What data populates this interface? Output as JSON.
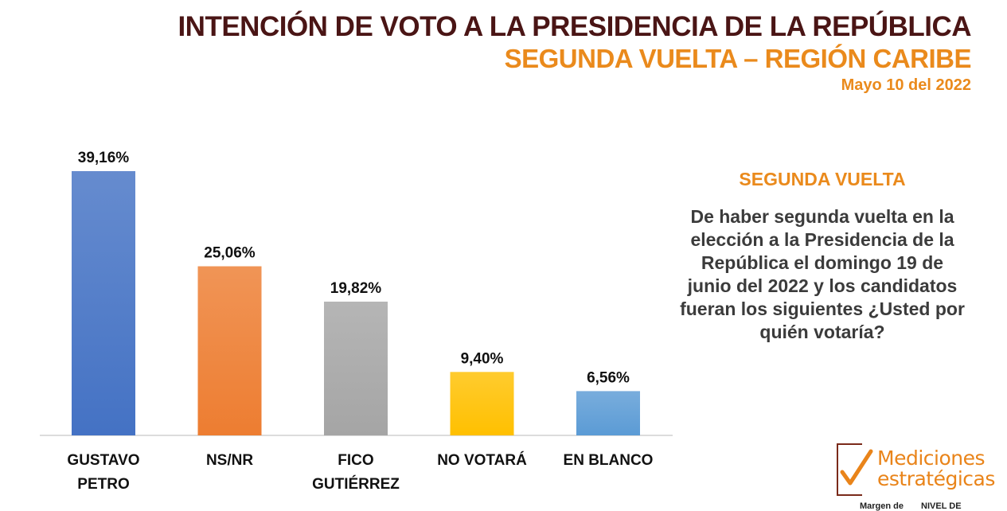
{
  "header": {
    "title": "INTENCIÓN DE VOTO A LA PRESIDENCIA DE LA REPÚBLICA",
    "subtitle": "SEGUNDA VUELTA – REGIÓN CARIBE",
    "date": "Mayo 10 del 2022"
  },
  "chart_data": {
    "type": "bar",
    "title": "INTENCIÓN DE VOTO A LA PRESIDENCIA DE LA REPÚBLICA",
    "subtitle": "SEGUNDA VUELTA – REGIÓN CARIBE",
    "categories": [
      [
        "GUSTAVO",
        "PETRO"
      ],
      [
        "NS/NR"
      ],
      [
        "FICO",
        "GUTIÉRREZ"
      ],
      [
        "NO VOTARÁ"
      ],
      [
        "EN BLANCO"
      ]
    ],
    "values": [
      39.16,
      25.06,
      19.82,
      9.4,
      6.56
    ],
    "value_labels": [
      "39,16%",
      "25,06%",
      "19,82%",
      "9,40%",
      "6,56%"
    ],
    "colors": [
      "#4472c4",
      "#ed7d31",
      "#a5a5a5",
      "#ffc000",
      "#5b9bd5"
    ],
    "unit": "%",
    "grid": false,
    "legend": "none"
  },
  "side": {
    "heading": "SEGUNDA VUELTA",
    "question": "De haber segunda vuelta en la elección a la Presidencia de la República el domingo 19 de junio del 2022 y los candidatos fueran los siguientes ¿Usted por quién votaría?"
  },
  "logo": {
    "line1": "Mediciones",
    "line2": "estratégicas"
  },
  "footnote": {
    "left": "Margen de",
    "right": "NIVEL DE"
  }
}
